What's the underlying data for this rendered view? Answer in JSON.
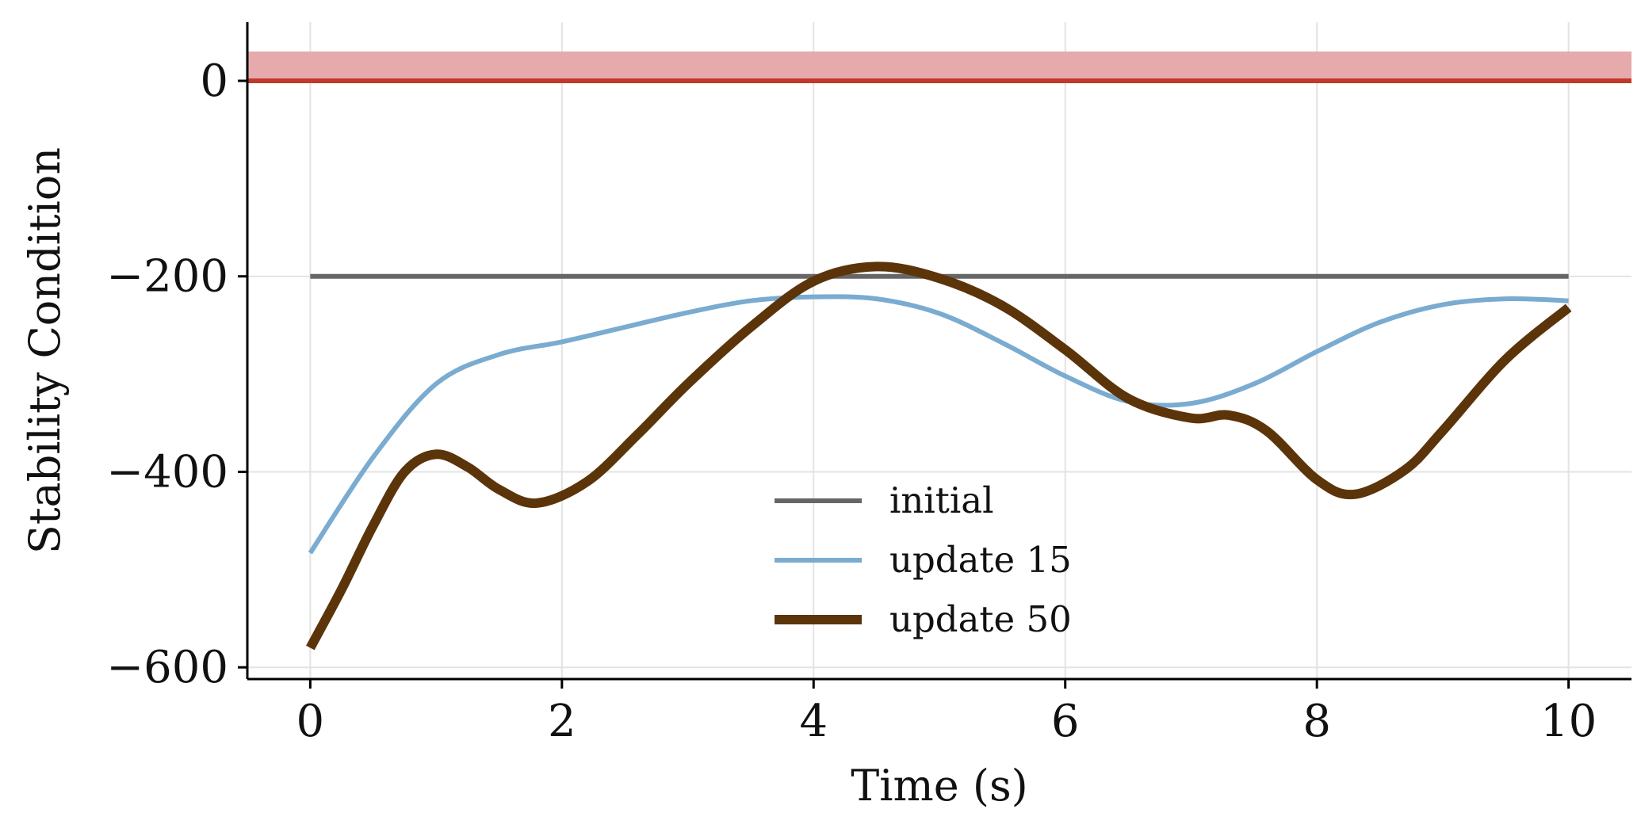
{
  "chart_data": {
    "type": "line",
    "title": "",
    "xlabel": "Time (s)",
    "ylabel": "Stability Condition",
    "xlim": [
      -0.5,
      10.5
    ],
    "ylim": [
      -612,
      60
    ],
    "xticks": [
      0,
      2,
      4,
      6,
      8,
      10
    ],
    "xtick_labels": [
      "0",
      "2",
      "4",
      "6",
      "8",
      "10"
    ],
    "yticks": [
      0,
      -200,
      -400,
      -600
    ],
    "ytick_labels": [
      "0",
      "−200",
      "−400",
      "−600"
    ],
    "grid": true,
    "legend_position": "lower center",
    "threshold_line": {
      "y": 0,
      "color": "#c0392b"
    },
    "threshold_band": {
      "y_range": [
        0,
        30
      ],
      "color": "#e6aaad"
    },
    "series": [
      {
        "name": "initial",
        "color": "#666666",
        "x": [
          0,
          10
        ],
        "y": [
          -200,
          -200
        ]
      },
      {
        "name": "update 15",
        "color": "#7aabd0",
        "x": [
          0,
          0.5,
          1.0,
          1.5,
          2.0,
          2.5,
          3.0,
          3.5,
          4.0,
          4.5,
          5.0,
          5.5,
          6.0,
          6.5,
          7.0,
          7.5,
          8.0,
          8.5,
          9.0,
          9.5,
          10.0
        ],
        "y": [
          -483,
          -385,
          -310,
          -280,
          -267,
          -252,
          -237,
          -225,
          -221,
          -223,
          -238,
          -268,
          -302,
          -328,
          -330,
          -310,
          -277,
          -247,
          -229,
          -223,
          -225
        ]
      },
      {
        "name": "update 50",
        "color": "#5c3409",
        "x": [
          0,
          0.25,
          0.5,
          0.75,
          1.0,
          1.25,
          1.5,
          1.8,
          2.2,
          2.6,
          3.0,
          3.5,
          4.0,
          4.5,
          5.0,
          5.5,
          6.0,
          6.5,
          7.0,
          7.3,
          7.6,
          8.0,
          8.3,
          8.7,
          9.0,
          9.5,
          10.0
        ],
        "y": [
          -580,
          -520,
          -455,
          -400,
          -382,
          -395,
          -418,
          -432,
          -410,
          -362,
          -310,
          -252,
          -205,
          -190,
          -202,
          -230,
          -275,
          -325,
          -345,
          -342,
          -358,
          -408,
          -423,
          -398,
          -358,
          -285,
          -232
        ]
      }
    ]
  }
}
